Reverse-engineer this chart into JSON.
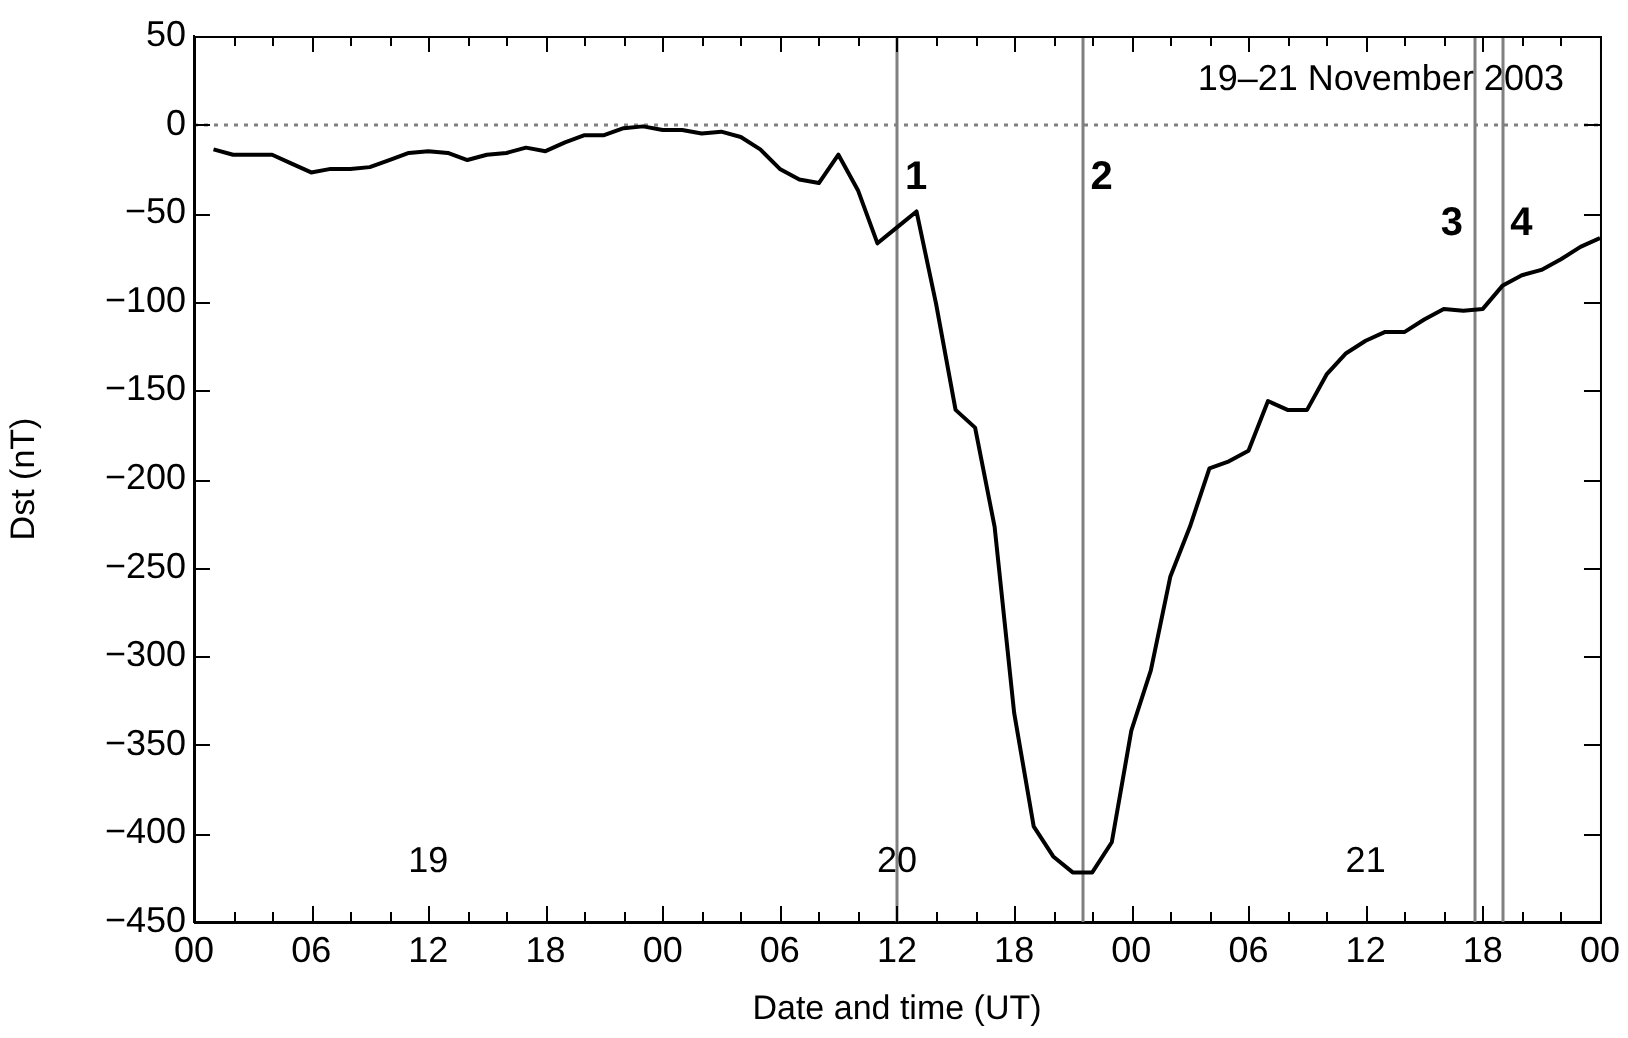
{
  "chart_data": {
    "type": "line",
    "title": "19–21 November 2003",
    "xlabel": "Date and time (UT)",
    "ylabel": "Dst (nT)",
    "x": [
      1,
      2,
      3,
      4,
      5,
      6,
      7,
      8,
      9,
      10,
      11,
      12,
      13,
      14,
      15,
      16,
      17,
      18,
      19,
      20,
      21,
      22,
      23,
      24,
      25,
      26,
      27,
      28,
      29,
      30,
      31,
      32,
      33,
      34,
      35,
      36,
      37,
      38,
      39,
      40,
      41,
      42,
      43,
      44,
      45,
      46,
      47,
      48,
      49,
      50,
      51,
      52,
      53,
      54,
      55,
      56,
      57,
      58,
      59,
      60,
      61,
      62,
      63,
      64,
      65,
      66,
      67,
      68,
      69,
      70,
      71,
      72
    ],
    "series": [
      {
        "color": "#000000",
        "values": [
          -14,
          -17,
          -17,
          -17,
          -22,
          -27,
          -25,
          -25,
          -24,
          -20,
          -16,
          -15,
          -16,
          -20,
          -17,
          -16,
          -13,
          -15,
          -10,
          -6,
          -6,
          -2,
          -1,
          -3,
          -3,
          -5,
          -4,
          -7,
          -14,
          -25,
          -31,
          -33,
          -17,
          -37,
          -67,
          -58,
          -49,
          -101,
          -161,
          -171,
          -227,
          -332,
          -396,
          -413,
          -422,
          -422,
          -405,
          -342,
          -308,
          -255,
          -227,
          -194,
          -190,
          -184,
          -156,
          -161,
          -161,
          -141,
          -129,
          -122,
          -117,
          -117,
          -110,
          -104,
          -105,
          -104,
          -91,
          -85,
          -82,
          -76,
          -69,
          -64
        ]
      }
    ],
    "xlim": [
      0,
      72
    ],
    "xticks": [
      {
        "value": 0,
        "label": "00"
      },
      {
        "value": 2,
        "label": null
      },
      {
        "value": 4,
        "label": null
      },
      {
        "value": 6,
        "label": "06"
      },
      {
        "value": 8,
        "label": null
      },
      {
        "value": 10,
        "label": null
      },
      {
        "value": 12,
        "label": "12"
      },
      {
        "value": 14,
        "label": null
      },
      {
        "value": 16,
        "label": null
      },
      {
        "value": 18,
        "label": "18"
      },
      {
        "value": 20,
        "label": null
      },
      {
        "value": 22,
        "label": null
      },
      {
        "value": 24,
        "label": "00"
      },
      {
        "value": 26,
        "label": null
      },
      {
        "value": 28,
        "label": null
      },
      {
        "value": 30,
        "label": "06"
      },
      {
        "value": 32,
        "label": null
      },
      {
        "value": 34,
        "label": null
      },
      {
        "value": 36,
        "label": "12"
      },
      {
        "value": 38,
        "label": null
      },
      {
        "value": 40,
        "label": null
      },
      {
        "value": 42,
        "label": "18"
      },
      {
        "value": 44,
        "label": null
      },
      {
        "value": 46,
        "label": null
      },
      {
        "value": 48,
        "label": "00"
      },
      {
        "value": 50,
        "label": null
      },
      {
        "value": 52,
        "label": null
      },
      {
        "value": 54,
        "label": "06"
      },
      {
        "value": 56,
        "label": null
      },
      {
        "value": 58,
        "label": null
      },
      {
        "value": 60,
        "label": "12"
      },
      {
        "value": 62,
        "label": null
      },
      {
        "value": 64,
        "label": null
      },
      {
        "value": 66,
        "label": "18"
      },
      {
        "value": 68,
        "label": null
      },
      {
        "value": 70,
        "label": null
      },
      {
        "value": 72,
        "label": "00"
      }
    ],
    "ylim": [
      -450,
      50
    ],
    "yticks": [
      -450,
      -400,
      -350,
      -300,
      -250,
      -200,
      -150,
      -100,
      -50,
      0,
      50
    ],
    "marker": "none",
    "line_style": "solid",
    "ref_lines": [
      {
        "axis": "y",
        "value": 0,
        "color": "#808080",
        "line_style": "dotted"
      },
      {
        "axis": "x",
        "value": 36,
        "color": "#808080"
      },
      {
        "axis": "x",
        "value": 45.5,
        "color": "#808080"
      },
      {
        "axis": "x",
        "value": 65.5,
        "color": "#808080"
      },
      {
        "axis": "x",
        "value": 67,
        "color": "#808080"
      }
    ],
    "annotations": [
      "19",
      "20",
      "21",
      {
        "text": "1",
        "x": 36,
        "y": -30
      },
      {
        "text": "2",
        "x": 45.5,
        "y": -30
      },
      {
        "text": "3",
        "x": 65.5,
        "y": -56
      },
      {
        "text": "4",
        "x": 67,
        "y": -56
      }
    ]
  }
}
